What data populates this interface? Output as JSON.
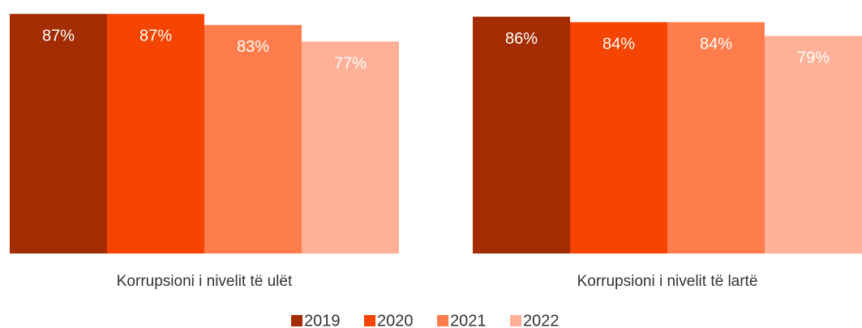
{
  "chart_data": {
    "type": "bar",
    "categories": [
      "Korrupsioni i nivelit të ulët",
      "Korrupsioni i nivelit të lartë"
    ],
    "series": [
      {
        "name": "2019",
        "color": "#a32c00",
        "values": [
          87,
          86
        ],
        "value_labels": [
          "87%",
          "86%"
        ]
      },
      {
        "name": "2020",
        "color": "#f54500",
        "values": [
          87,
          84
        ],
        "value_labels": [
          "87%",
          "84%"
        ]
      },
      {
        "name": "2021",
        "color": "#ff7d4d",
        "values": [
          83,
          84
        ],
        "value_labels": [
          "83%",
          "84%"
        ]
      },
      {
        "name": "2022",
        "color": "#ffb096",
        "values": [
          77,
          79
        ],
        "value_labels": [
          "77%",
          "79%"
        ]
      }
    ],
    "ylim": [
      0,
      90
    ],
    "legend": "bottom"
  }
}
